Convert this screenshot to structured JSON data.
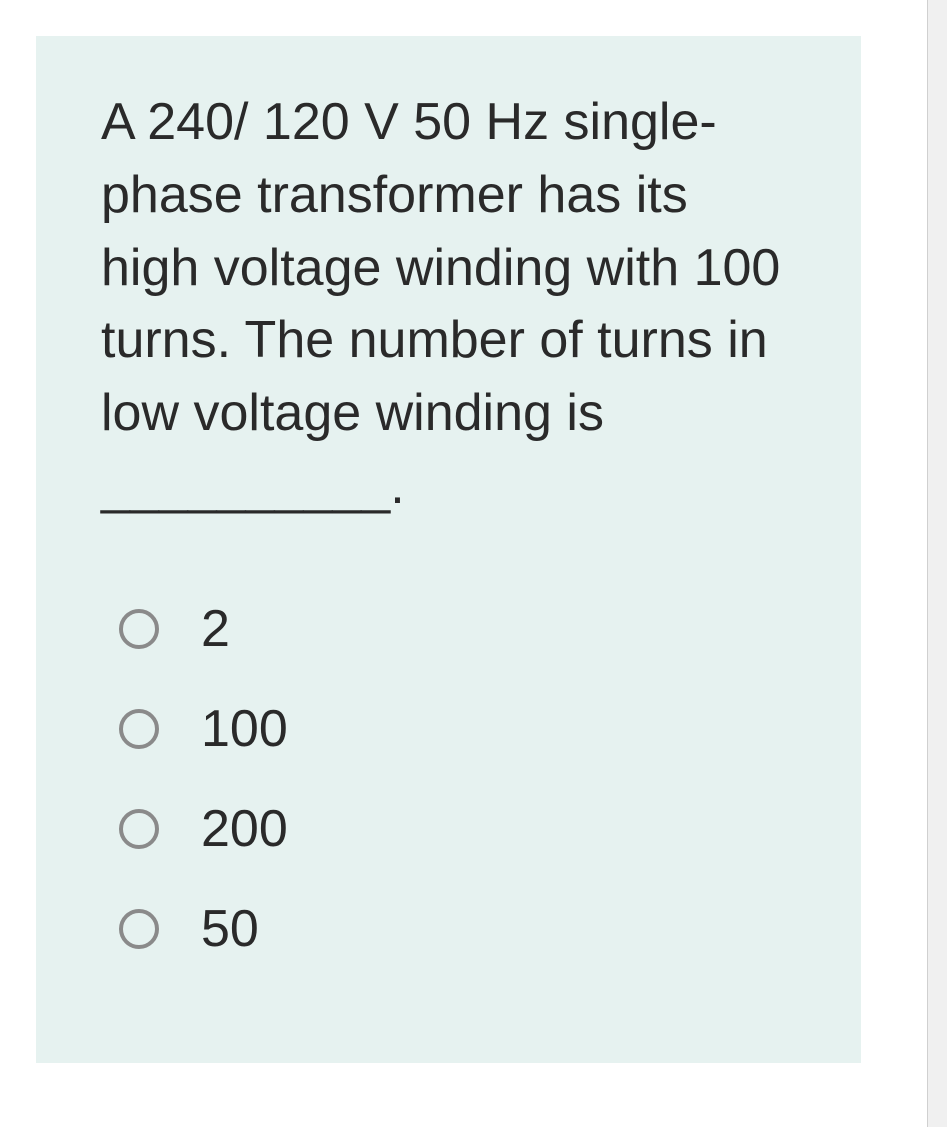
{
  "question": {
    "text": "A 240/ 120 V 50 Hz single-phase transformer has its high voltage winding with 100 turns. The number of turns in low voltage winding is __________.",
    "options": [
      {
        "label": "2"
      },
      {
        "label": "100"
      },
      {
        "label": "200"
      },
      {
        "label": "50"
      }
    ]
  },
  "styling": {
    "card_background": "#e6f2f0",
    "page_background": "#ffffff",
    "text_color": "#2a2a2a",
    "radio_border_color": "#8a8a8a",
    "question_fontsize": 52,
    "option_fontsize": 52,
    "radio_size": 40,
    "radio_border_width": 4
  }
}
